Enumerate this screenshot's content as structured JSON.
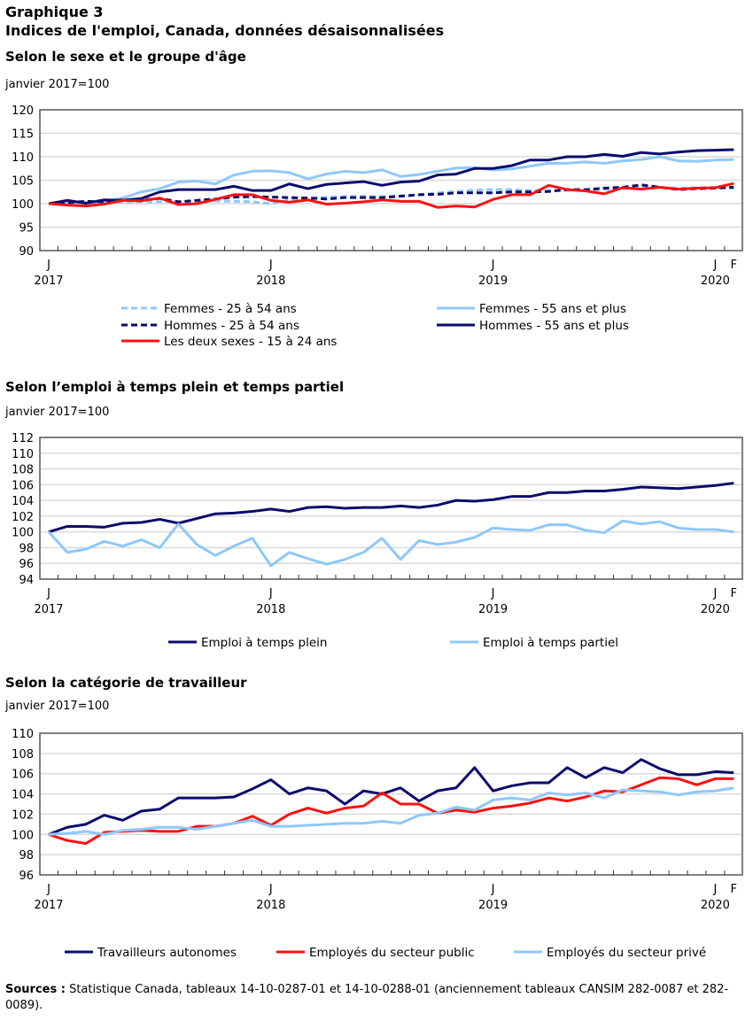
{
  "title": "Graphique 3",
  "subtitle": "Indices de l'emploi, Canada, données désaisonnalisées",
  "sources_label": "Sources :",
  "sources_text": " Statistique Canada, tableaux 14-10-0287-01 et 14-10-0288-01 (anciennement tableaux CANSIM 282-0087 et 282-0089).",
  "colors": {
    "navy": "#0b0b6e",
    "lightblue": "#8ec8fb",
    "red": "#ff1010"
  },
  "chart_data": [
    {
      "type": "line",
      "title": "Selon le sexe et le groupe d'âge",
      "ylabel": "janvier 2017=100",
      "x_start": "2017-01",
      "x_end": "2020-02",
      "frequency": "monthly",
      "x_tick_labels": [
        {
          "month": "J",
          "year": "2017"
        },
        {
          "month": "J",
          "year": "2018"
        },
        {
          "month": "J",
          "year": "2019"
        },
        {
          "month": "J",
          "year": "2020"
        },
        {
          "month": "F",
          "year": ""
        }
      ],
      "ylim": [
        90,
        120
      ],
      "yticks": [
        90,
        95,
        100,
        105,
        110,
        115,
        120
      ],
      "grid": true,
      "legend_position": "bottom",
      "series": [
        {
          "name": "Femmes - 25 à 54 ans",
          "color": "#8ec8fb",
          "dash": true,
          "values": [
            100,
            100.1,
            100.3,
            100.4,
            100.3,
            100.4,
            100.4,
            100.4,
            100.5,
            100.6,
            100.5,
            100.4,
            100.0,
            100.8,
            101.2,
            101.4,
            101.5,
            101.6,
            101.5,
            101.6,
            101.9,
            102.3,
            102.6,
            102.9,
            103.0,
            103.0,
            102.8,
            102.8,
            102.8,
            103.0,
            103.0,
            103.2,
            103.6,
            103.4,
            103.3,
            103.4,
            103.5,
            103.3
          ]
        },
        {
          "name": "Femmes - 55 ans et plus",
          "color": "#8ec8fb",
          "dash": false,
          "values": [
            100,
            100.3,
            100.2,
            100.5,
            101.2,
            102.5,
            103.2,
            104.6,
            104.8,
            104.2,
            106.1,
            106.9,
            107.0,
            106.6,
            105.3,
            106.3,
            106.9,
            106.6,
            107.2,
            105.8,
            106.2,
            106.9,
            107.6,
            107.7,
            107.2,
            107.4,
            108.0,
            108.6,
            108.6,
            108.9,
            108.6,
            109.1,
            109.4,
            110.0,
            109.1,
            109.0,
            109.3,
            109.4
          ]
        },
        {
          "name": "Hommes - 25 à 54 ans",
          "color": "#0b0b6e",
          "dash": true,
          "values": [
            100,
            100.2,
            100.5,
            100.4,
            100.8,
            100.8,
            101.1,
            100.4,
            100.7,
            101.0,
            101.4,
            101.5,
            101.4,
            101.3,
            101.2,
            101.0,
            101.3,
            101.3,
            101.3,
            101.6,
            101.9,
            102.0,
            102.3,
            102.3,
            102.3,
            102.5,
            102.5,
            102.6,
            103.0,
            103.0,
            103.3,
            103.5,
            104.0,
            103.5,
            103.0,
            103.2,
            103.3,
            103.5
          ]
        },
        {
          "name": "Hommes - 55 ans et plus",
          "color": "#0b0b6e",
          "dash": false,
          "values": [
            100,
            100.7,
            100.1,
            100.8,
            100.7,
            101.1,
            102.5,
            103.0,
            103.0,
            103.0,
            103.7,
            102.8,
            102.8,
            104.2,
            103.2,
            104.1,
            104.4,
            104.7,
            103.9,
            104.6,
            104.8,
            106.1,
            106.3,
            107.5,
            107.5,
            108.1,
            109.3,
            109.3,
            110.0,
            110.0,
            110.5,
            110.1,
            110.9,
            110.6,
            111.0,
            111.3,
            111.4,
            111.5
          ]
        },
        {
          "name": "Les deux sexes - 15 à 24 ans",
          "color": "#ff1010",
          "dash": false,
          "values": [
            100,
            99.7,
            99.5,
            99.9,
            100.7,
            100.6,
            101.2,
            99.8,
            100.0,
            100.9,
            101.9,
            101.9,
            100.7,
            100.3,
            100.8,
            99.9,
            100.1,
            100.4,
            100.8,
            100.5,
            100.5,
            99.2,
            99.5,
            99.3,
            100.9,
            101.9,
            101.9,
            103.9,
            103.0,
            102.7,
            102.1,
            103.4,
            103.1,
            103.5,
            103.1,
            103.3,
            103.4,
            104.3
          ]
        }
      ]
    },
    {
      "type": "line",
      "title": "Selon l’emploi à temps plein et temps partiel",
      "ylabel": "janvier 2017=100",
      "x_start": "2017-01",
      "x_end": "2020-02",
      "frequency": "monthly",
      "x_tick_labels": [
        {
          "month": "J",
          "year": "2017"
        },
        {
          "month": "J",
          "year": "2018"
        },
        {
          "month": "J",
          "year": "2019"
        },
        {
          "month": "J",
          "year": "2020"
        },
        {
          "month": "F",
          "year": ""
        }
      ],
      "ylim": [
        94,
        112
      ],
      "yticks": [
        94,
        96,
        98,
        100,
        102,
        104,
        106,
        108,
        110,
        112
      ],
      "grid": true,
      "legend_position": "bottom",
      "series": [
        {
          "name": "Emploi à temps plein",
          "color": "#0b0b6e",
          "dash": false,
          "values": [
            100,
            100.7,
            100.7,
            100.6,
            101.1,
            101.2,
            101.6,
            101.1,
            101.7,
            102.3,
            102.4,
            102.6,
            102.9,
            102.6,
            103.1,
            103.2,
            103.0,
            103.1,
            103.1,
            103.3,
            103.1,
            103.4,
            104.0,
            103.9,
            104.1,
            104.5,
            104.5,
            105.0,
            105.0,
            105.2,
            105.2,
            105.4,
            105.7,
            105.6,
            105.5,
            105.7,
            105.9,
            106.2
          ]
        },
        {
          "name": "Emploi à temps partiel",
          "color": "#8ec8fb",
          "dash": false,
          "values": [
            100,
            97.4,
            97.8,
            98.8,
            98.2,
            99.0,
            98.0,
            101.0,
            98.4,
            97.0,
            98.2,
            99.2,
            95.7,
            97.4,
            96.6,
            95.9,
            96.5,
            97.4,
            99.2,
            96.5,
            98.9,
            98.4,
            98.7,
            99.3,
            100.5,
            100.3,
            100.2,
            100.9,
            100.9,
            100.2,
            99.9,
            101.4,
            101.0,
            101.3,
            100.5,
            100.3,
            100.3,
            100.0
          ]
        }
      ]
    },
    {
      "type": "line",
      "title": "Selon la catégorie de travailleur",
      "ylabel": "janvier 2017=100",
      "x_start": "2017-01",
      "x_end": "2020-02",
      "frequency": "monthly",
      "x_tick_labels": [
        {
          "month": "J",
          "year": "2017"
        },
        {
          "month": "J",
          "year": "2018"
        },
        {
          "month": "J",
          "year": "2019"
        },
        {
          "month": "J",
          "year": "2020"
        },
        {
          "month": "F",
          "year": ""
        }
      ],
      "ylim": [
        96,
        110
      ],
      "yticks": [
        96,
        98,
        100,
        102,
        104,
        106,
        108,
        110
      ],
      "grid": true,
      "legend_position": "bottom",
      "series": [
        {
          "name": "Travailleurs autonomes",
          "color": "#0b0b6e",
          "dash": false,
          "values": [
            100,
            100.7,
            101.0,
            101.9,
            101.4,
            102.3,
            102.5,
            103.6,
            103.6,
            103.6,
            103.7,
            104.5,
            105.4,
            104.0,
            104.6,
            104.3,
            103.0,
            104.3,
            104.0,
            104.6,
            103.3,
            104.3,
            104.6,
            106.6,
            104.3,
            104.8,
            105.1,
            105.1,
            106.6,
            105.6,
            106.6,
            106.1,
            107.4,
            106.5,
            105.9,
            105.9,
            106.2,
            106.1
          ]
        },
        {
          "name": "Employés du secteur public",
          "color": "#ff1010",
          "dash": false,
          "values": [
            100,
            99.4,
            99.1,
            100.2,
            100.3,
            100.4,
            100.3,
            100.3,
            100.8,
            100.8,
            101.1,
            101.8,
            100.9,
            102.0,
            102.6,
            102.1,
            102.6,
            102.8,
            104.1,
            103.0,
            103.0,
            102.1,
            102.4,
            102.2,
            102.6,
            102.8,
            103.1,
            103.6,
            103.3,
            103.7,
            104.3,
            104.2,
            104.9,
            105.6,
            105.5,
            104.9,
            105.5,
            105.5
          ]
        },
        {
          "name": "Employés du secteur privé",
          "color": "#8ec8fb",
          "dash": false,
          "values": [
            100,
            100.1,
            100.3,
            100.0,
            100.4,
            100.5,
            100.7,
            100.7,
            100.5,
            100.8,
            101.1,
            101.4,
            100.8,
            100.8,
            100.9,
            101.0,
            101.1,
            101.1,
            101.3,
            101.1,
            101.9,
            102.1,
            102.7,
            102.4,
            103.4,
            103.6,
            103.4,
            104.1,
            103.9,
            104.1,
            103.6,
            104.4,
            104.3,
            104.2,
            103.9,
            104.2,
            104.3,
            104.6
          ]
        }
      ]
    }
  ]
}
